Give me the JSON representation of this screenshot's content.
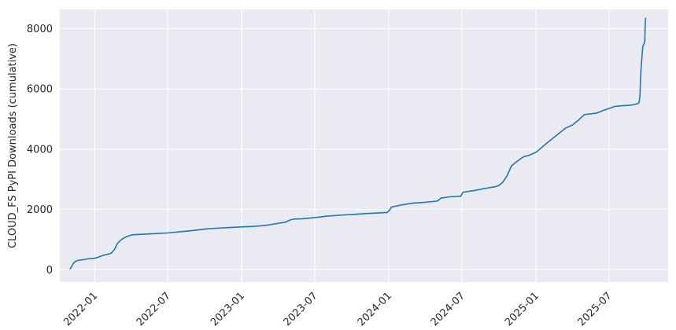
{
  "chart_data": {
    "type": "line",
    "title": "",
    "xlabel": "",
    "ylabel": "CLOUD_FS PyPI Downloads (cumulative)",
    "x_type": "date",
    "xlim": [
      "2021-10-06",
      "2025-11-25"
    ],
    "ylim": [
      -410,
      8640
    ],
    "grid": true,
    "legend": "none",
    "colors": {
      "background": "#EAEAF2",
      "grid": "#FFFFFF",
      "line": "#1F77B4",
      "text": "#262626"
    },
    "x_ticks": [
      {
        "value": "2022-01-01",
        "label": "2022-01"
      },
      {
        "value": "2022-07-01",
        "label": "2022-07"
      },
      {
        "value": "2023-01-01",
        "label": "2023-01"
      },
      {
        "value": "2023-07-01",
        "label": "2023-07"
      },
      {
        "value": "2024-01-01",
        "label": "2024-01"
      },
      {
        "value": "2024-07-01",
        "label": "2024-07"
      },
      {
        "value": "2025-01-01",
        "label": "2025-01"
      },
      {
        "value": "2025-07-01",
        "label": "2025-07"
      }
    ],
    "y_ticks": [
      {
        "value": 0,
        "label": "0"
      },
      {
        "value": 2000,
        "label": "2000"
      },
      {
        "value": 4000,
        "label": "4000"
      },
      {
        "value": 6000,
        "label": "6000"
      },
      {
        "value": 8000,
        "label": "8000"
      }
    ],
    "series": [
      {
        "x": [
          "2021-11-01",
          "2021-11-04",
          "2021-11-08",
          "2021-11-12",
          "2021-11-20",
          "2021-12-01",
          "2021-12-15",
          "2022-01-01",
          "2022-01-10",
          "2022-01-20",
          "2022-01-28",
          "2022-02-05",
          "2022-02-12",
          "2022-02-20",
          "2022-02-25",
          "2022-03-02",
          "2022-03-08",
          "2022-03-15",
          "2022-03-25",
          "2022-04-05",
          "2022-05-01",
          "2022-06-01",
          "2022-07-01",
          "2022-08-01",
          "2022-09-01",
          "2022-10-01",
          "2022-11-01",
          "2022-12-01",
          "2023-01-01",
          "2023-02-01",
          "2023-03-01",
          "2023-04-01",
          "2023-04-20",
          "2023-05-01",
          "2023-05-10",
          "2023-06-01",
          "2023-07-01",
          "2023-08-01",
          "2023-09-01",
          "2023-10-01",
          "2023-11-01",
          "2023-12-01",
          "2023-12-28",
          "2024-01-02",
          "2024-01-08",
          "2024-02-01",
          "2024-03-01",
          "2024-04-01",
          "2024-05-01",
          "2024-05-10",
          "2024-06-01",
          "2024-06-28",
          "2024-07-03",
          "2024-08-01",
          "2024-09-01",
          "2024-09-20",
          "2024-10-01",
          "2024-10-10",
          "2024-10-20",
          "2024-11-01",
          "2024-11-15",
          "2024-12-01",
          "2024-12-15",
          "2025-01-01",
          "2025-01-10",
          "2025-02-01",
          "2025-02-15",
          "2025-03-01",
          "2025-03-15",
          "2025-04-01",
          "2025-04-15",
          "2025-05-01",
          "2025-06-01",
          "2025-06-15",
          "2025-07-01",
          "2025-07-15",
          "2025-08-01",
          "2025-08-20",
          "2025-09-01",
          "2025-09-12",
          "2025-09-14",
          "2025-09-16",
          "2025-09-18",
          "2025-09-20",
          "2025-09-23",
          "2025-09-26",
          "2025-09-28",
          "2025-09-29",
          "2025-09-30"
        ],
        "y": [
          30,
          100,
          200,
          260,
          310,
          330,
          360,
          380,
          420,
          470,
          500,
          520,
          560,
          700,
          850,
          930,
          1000,
          1060,
          1120,
          1160,
          1180,
          1200,
          1220,
          1260,
          1300,
          1350,
          1380,
          1400,
          1420,
          1440,
          1470,
          1540,
          1580,
          1650,
          1680,
          1690,
          1730,
          1780,
          1810,
          1830,
          1860,
          1880,
          1900,
          1960,
          2080,
          2150,
          2210,
          2240,
          2280,
          2380,
          2420,
          2440,
          2570,
          2630,
          2710,
          2750,
          2800,
          2900,
          3100,
          3450,
          3600,
          3750,
          3800,
          3900,
          4000,
          4250,
          4400,
          4550,
          4700,
          4800,
          4950,
          5150,
          5200,
          5280,
          5350,
          5420,
          5440,
          5460,
          5480,
          5520,
          5560,
          5800,
          6500,
          6900,
          7400,
          7500,
          7600,
          8100,
          8350
        ]
      }
    ]
  }
}
